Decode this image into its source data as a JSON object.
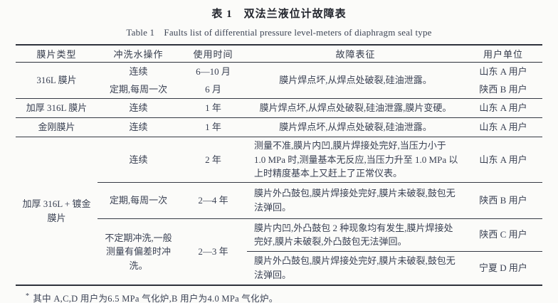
{
  "page": {
    "title_zh": "表 1　双法兰液位计故障表",
    "title_en": "Table 1　Faults list of differential pressure level-meters of diaphragm seal type",
    "footnote_marker": "*",
    "footnote_text": "其中 A,C,D 用户为6.5 MPa 气化炉,B 用户为4.0 MPa 气化炉。"
  },
  "table": {
    "headers": {
      "type": "膜片类型",
      "flush": "冲洗水操作",
      "time": "使用时间",
      "fault": "故障表征",
      "user": "用户单位"
    },
    "row_316l": {
      "type": "316L 膜片",
      "flush_1": "连续",
      "time_1": "6—10 月",
      "user_1": "山东 A 用户",
      "flush_2": "定期,每周一次",
      "time_2": "6 月",
      "user_2": "陕西 B 用户",
      "fault": "膜片焊点坏,从焊点处破裂,硅油泄露。"
    },
    "row_thick316l": {
      "type": "加厚 316L 膜片",
      "flush": "连续",
      "time": "1 年",
      "fault": "膜片焊点坏,从焊点处破裂,硅油泄露,膜片变硬。",
      "user": "山东 A 用户"
    },
    "row_diamond": {
      "type": "金刚膜片",
      "flush": "连续",
      "time": "1 年",
      "fault": "膜片焊点坏,从焊点处破裂,硅油泄露。",
      "user": "山东 A 用户"
    },
    "group_gold": {
      "type": "加厚 316L + 镀金膜片",
      "sub1": {
        "flush": "连续",
        "time": "2 年",
        "fault": "测量不准,膜片内凹,膜片焊接处完好,当压力小于 1.0 MPa 时,测量基本无反应,当压力升至 1.0 MPa 以上时精度基本上又赶上了正常仪表。",
        "user": "山东 A 用户"
      },
      "sub2": {
        "flush": "定期,每周一次",
        "time": "2—4 年",
        "fault": "膜片外凸鼓包,膜片焊接处完好,膜片未破裂,鼓包无法弹回。",
        "user": "陕西 B 用户"
      },
      "sub34_flush": "不定期冲洗,一般测量有偏差时冲洗。",
      "sub34_time": "2—3 年",
      "sub3": {
        "fault": "膜片内凹,外凸鼓包 2 种现象均有发生,膜片焊接处完好,膜片未破裂,外凸鼓包无法弹回。",
        "user": "陕西 C 用户"
      },
      "sub4": {
        "fault": "膜片外凸鼓包,膜片焊接处完好,膜片未破裂,鼓包无法弹回。",
        "user": "宁夏 D 用户"
      }
    }
  }
}
